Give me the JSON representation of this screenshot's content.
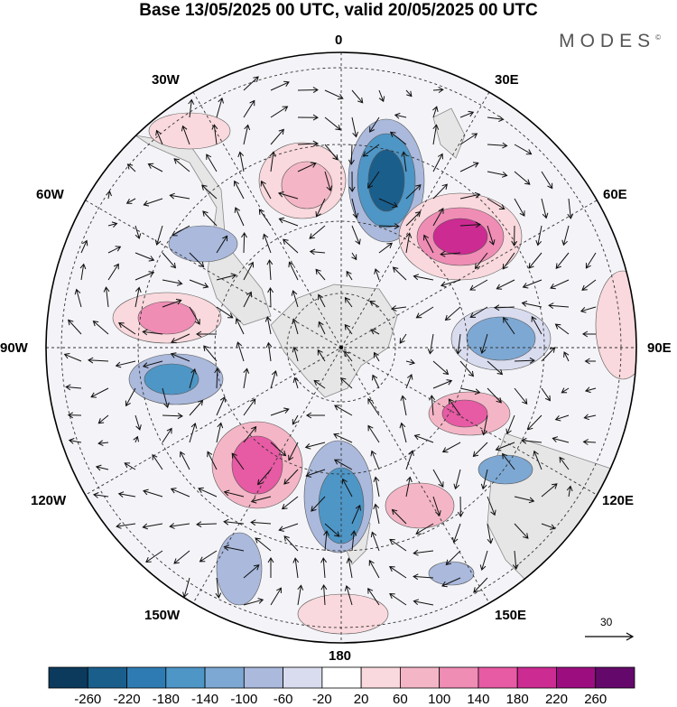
{
  "header": {
    "title": "Base 13/05/2025 00 UTC, valid 20/05/2025 00 UTC",
    "brand": "MODES",
    "brand_mark": "©"
  },
  "map": {
    "projection": "south-polar-stereographic",
    "longitude_labels": {
      "top": "0",
      "top_right": "30E",
      "upper_right": "60E",
      "right": "90E",
      "lower_right": "120E",
      "bottom_right": "150E",
      "bottom": "180",
      "bottom_left": "150W",
      "lower_left": "120W",
      "left": "90W",
      "upper_left": "60W",
      "top_left": "30W"
    },
    "reference_vector_label": "30",
    "colors": {
      "land": "#e6e6e6",
      "coast": "#8a8a8a",
      "grid": "#333333"
    }
  },
  "colorbar": {
    "ticks": [
      "-260",
      "-220",
      "-180",
      "-140",
      "-100",
      "-60",
      "-20",
      "20",
      "60",
      "100",
      "140",
      "180",
      "220",
      "260"
    ],
    "colors": [
      "#0b3a5c",
      "#1a5e8c",
      "#2e7bb3",
      "#4e96c6",
      "#7da8d3",
      "#aab9dc",
      "#d9dcee",
      "#ffffff",
      "#f9d9dd",
      "#f4b6c6",
      "#ef8db5",
      "#e75aa4",
      "#cc2b92",
      "#9c0e80",
      "#64096b"
    ]
  }
}
